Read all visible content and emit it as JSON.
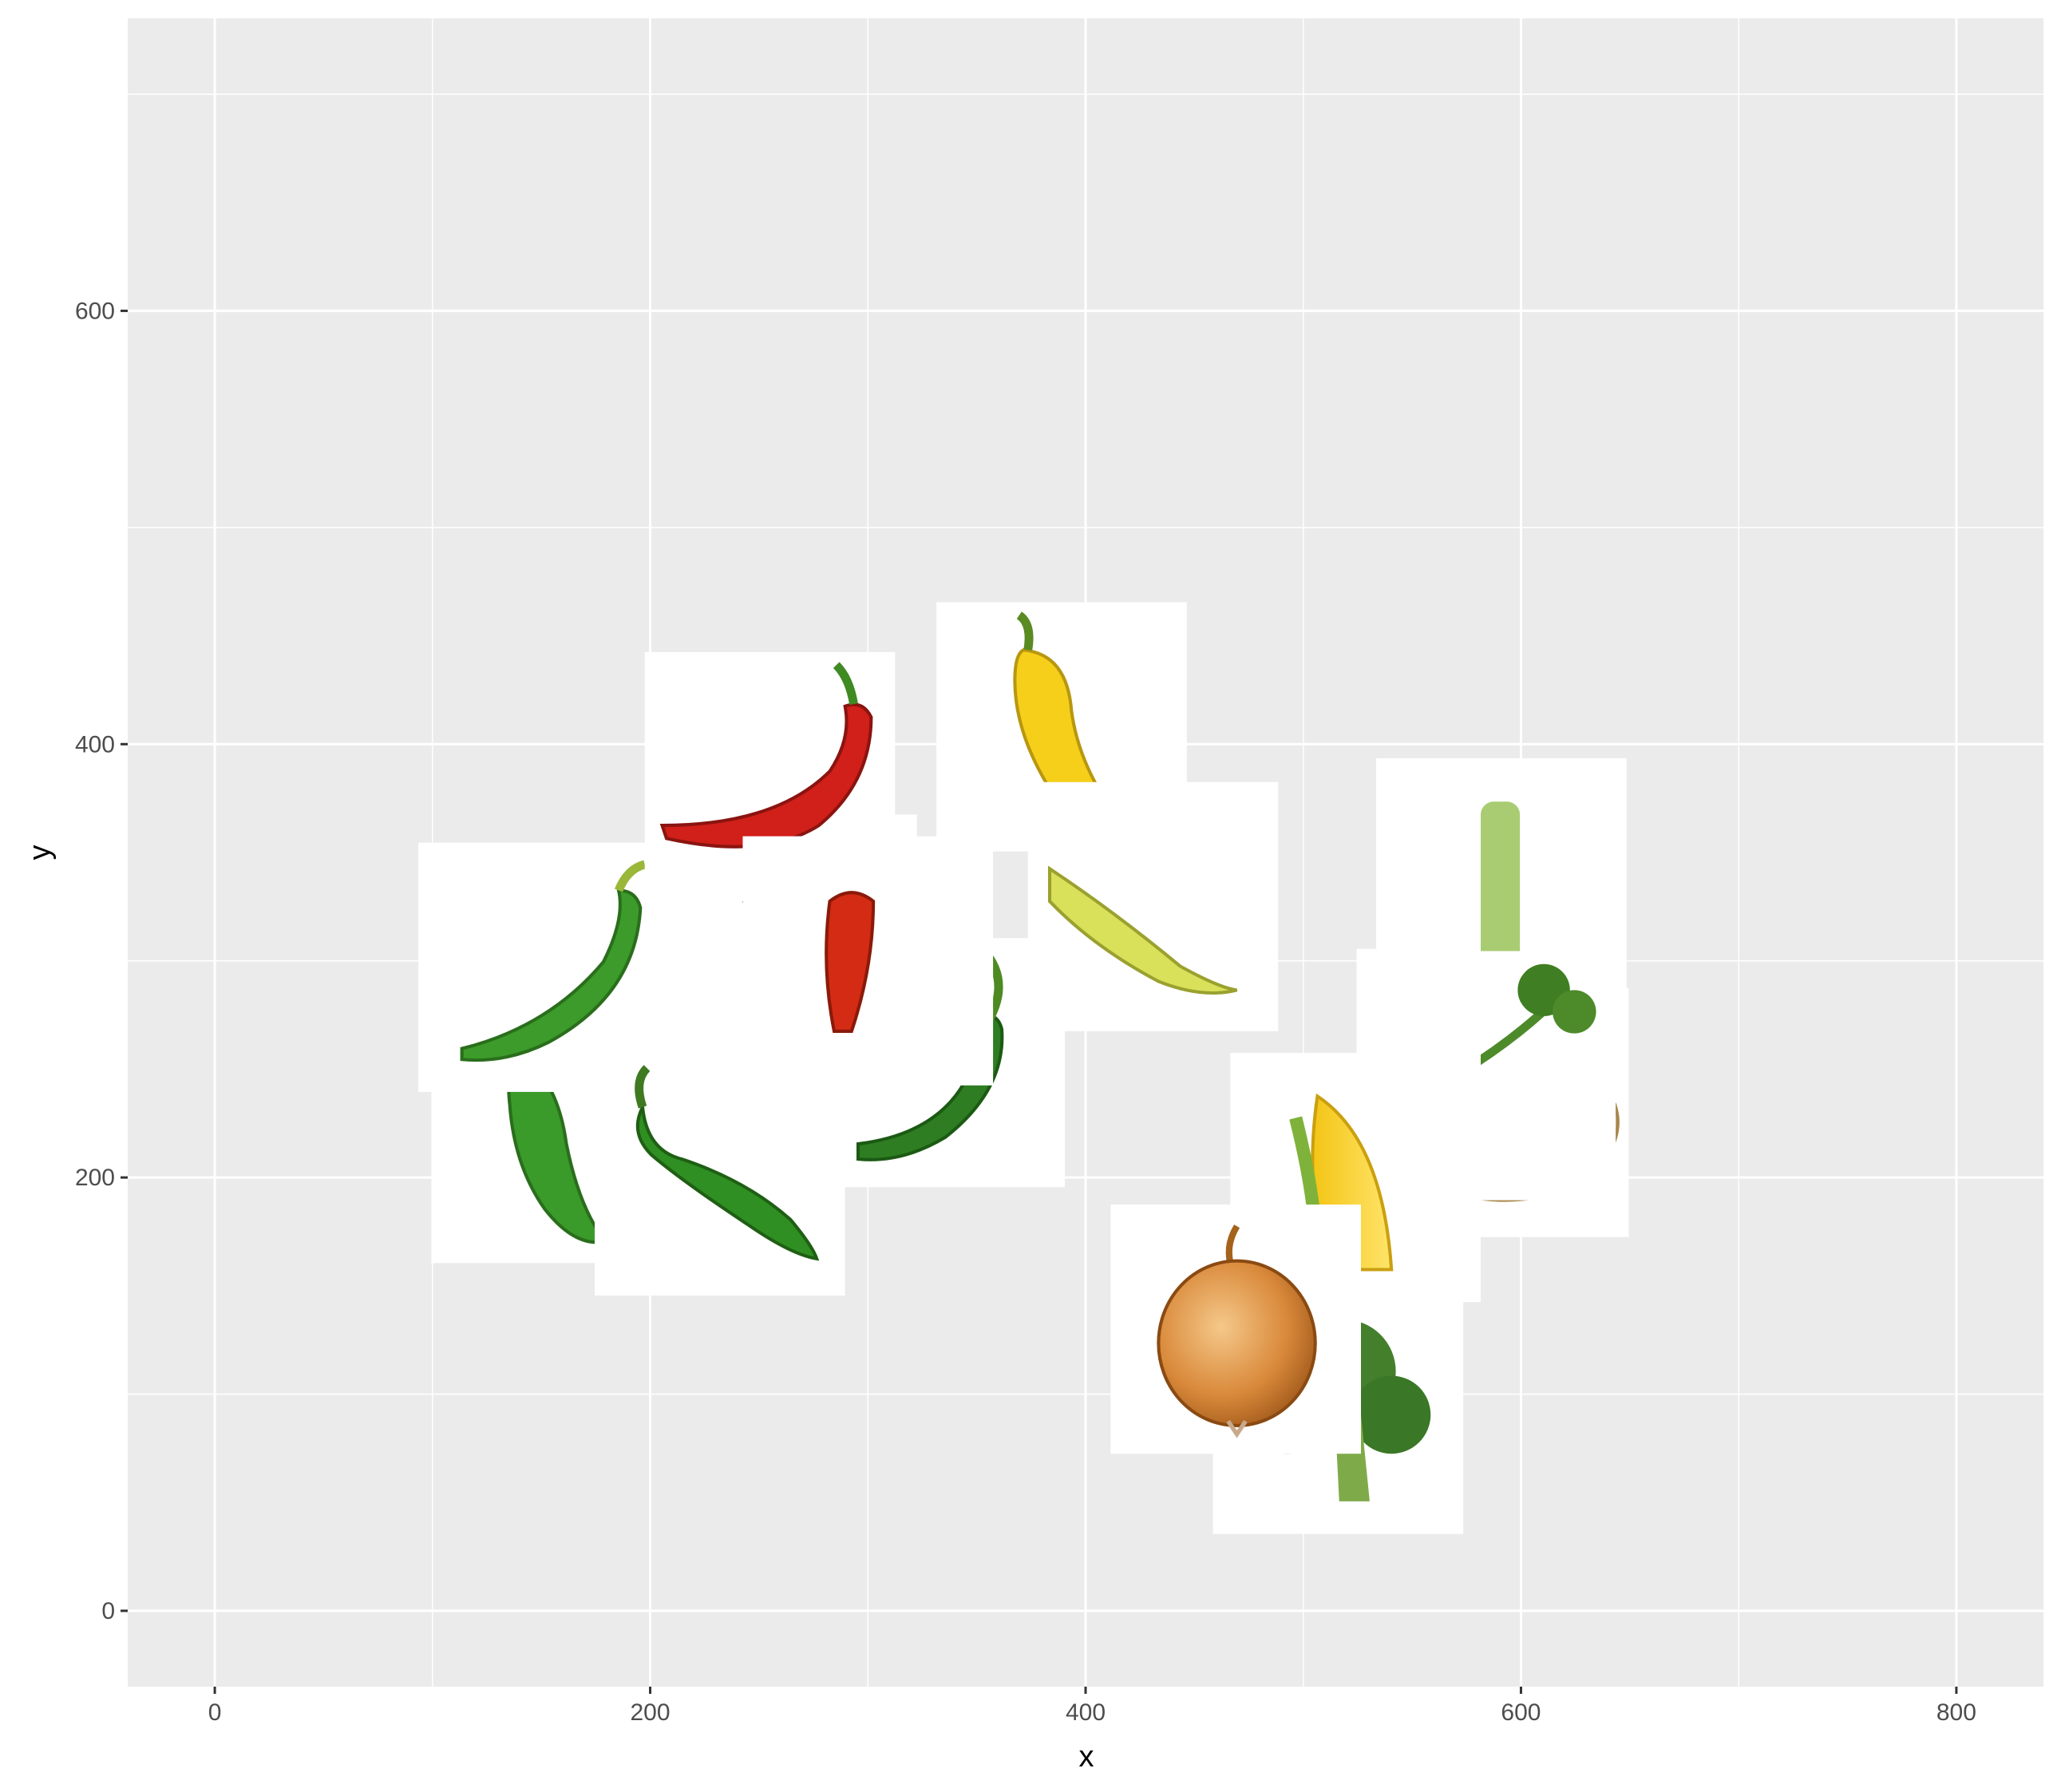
{
  "chart_data": {
    "type": "scatter",
    "title": "",
    "xlabel": "x",
    "ylabel": "y",
    "xlim": [
      -40,
      840
    ],
    "ylim": [
      -35,
      735
    ],
    "x_ticks": [
      0,
      200,
      400,
      600,
      800
    ],
    "y_ticks": [
      0,
      200,
      400,
      600
    ],
    "x_tick_labels": [
      "0",
      "200",
      "400",
      "600",
      "800"
    ],
    "y_tick_labels": [
      "0",
      "200",
      "400",
      "600"
    ],
    "grid": true,
    "legend": "none",
    "colors": {
      "panel": "#ebebeb",
      "grid": "#ffffff",
      "tile": "#ffffff",
      "axis_text": "#4d4d4d"
    },
    "tile_size": 115,
    "points": [
      {
        "x": 157,
        "y": 218,
        "image": "green-jalapeno-pepper"
      },
      {
        "x": 151,
        "y": 297,
        "image": "green-chili-pepper-curved"
      },
      {
        "x": 232,
        "y": 203,
        "image": "long-green-chili-pepper"
      },
      {
        "x": 265,
        "y": 310,
        "image": "dark-green-pepper"
      },
      {
        "x": 255,
        "y": 385,
        "image": "red-chili-pepper"
      },
      {
        "x": 333,
        "y": 253,
        "image": "jalapeno-pepper"
      },
      {
        "x": 300,
        "y": 300,
        "image": "small-red-pepper"
      },
      {
        "x": 389,
        "y": 408,
        "image": "yellow-chili-pepper"
      },
      {
        "x": 431,
        "y": 325,
        "image": "yellow-green-pepper"
      },
      {
        "x": 582,
        "y": 248,
        "image": "celery"
      },
      {
        "x": 591,
        "y": 336,
        "image": "celery-stalk"
      },
      {
        "x": 592,
        "y": 230,
        "image": "potato"
      },
      {
        "x": 586,
        "y": 247,
        "image": "radish"
      },
      {
        "x": 524,
        "y": 200,
        "image": "corn"
      },
      {
        "x": 516,
        "y": 93,
        "image": "broccoli"
      },
      {
        "x": 469,
        "y": 130,
        "image": "onion"
      }
    ]
  }
}
